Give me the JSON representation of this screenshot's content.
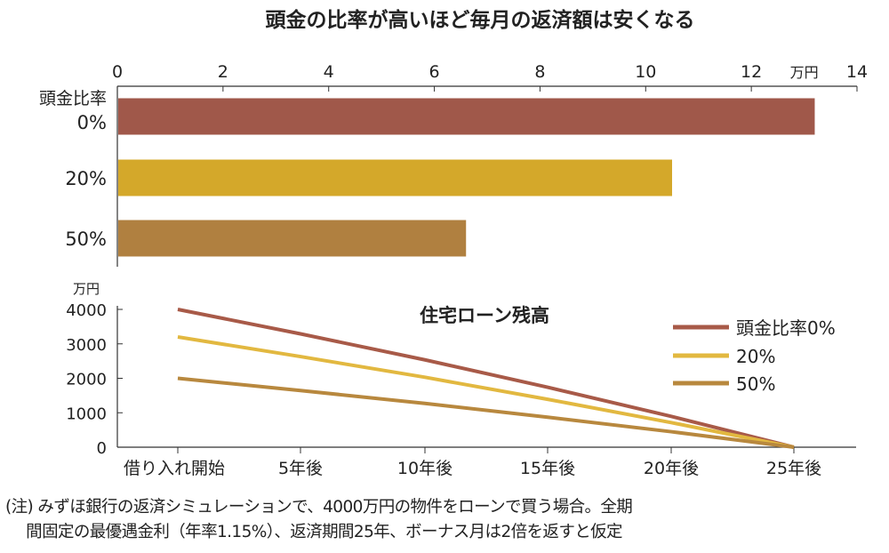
{
  "title": "頭金の比率が高いほど毎月の返済額は安くなる",
  "chart_data": [
    {
      "type": "bar",
      "orientation": "horizontal",
      "categories": [
        "頭金比率\n0%",
        "20%",
        "50%"
      ],
      "category_lines": [
        [
          "頭金比率",
          "0%"
        ],
        [
          "20%"
        ],
        [
          "50%"
        ]
      ],
      "values": [
        13.2,
        10.5,
        6.6
      ],
      "colors": [
        "#a0584a",
        "#d4a82a",
        "#b08040"
      ],
      "xunit": "万円",
      "xlim": [
        0,
        14
      ],
      "xticks": [
        0,
        2,
        4,
        6,
        8,
        10,
        12,
        14
      ],
      "axis_position": "top",
      "grid": false
    },
    {
      "type": "line",
      "title": "住宅ローン残高",
      "yunit": "万円",
      "ylim": [
        0,
        4000
      ],
      "yticks": [
        0,
        1000,
        2000,
        3000,
        4000
      ],
      "categories": [
        "借り入れ開始",
        "5年後",
        "10年後",
        "15年後",
        "20年後",
        "25年後"
      ],
      "series": [
        {
          "name": "頭金比率0%",
          "color": "#a85a48",
          "values": [
            4000,
            3290,
            2535,
            1740,
            895,
            0
          ]
        },
        {
          "name": "20%",
          "color": "#e2b840",
          "values": [
            3200,
            2630,
            2030,
            1390,
            715,
            0
          ]
        },
        {
          "name": "50%",
          "color": "#b8883e",
          "values": [
            2000,
            1645,
            1270,
            870,
            450,
            0
          ]
        }
      ],
      "legend": "top-right",
      "grid": false
    }
  ],
  "notes": [
    "(注) みずほ銀行の返済シミュレーションで、4000万円の物件をローンで買う場合。全期",
    "　 間固定の最優遇金利（年率1.15%）、返済期間25年、ボーナス月は2倍を返すと仮定"
  ]
}
